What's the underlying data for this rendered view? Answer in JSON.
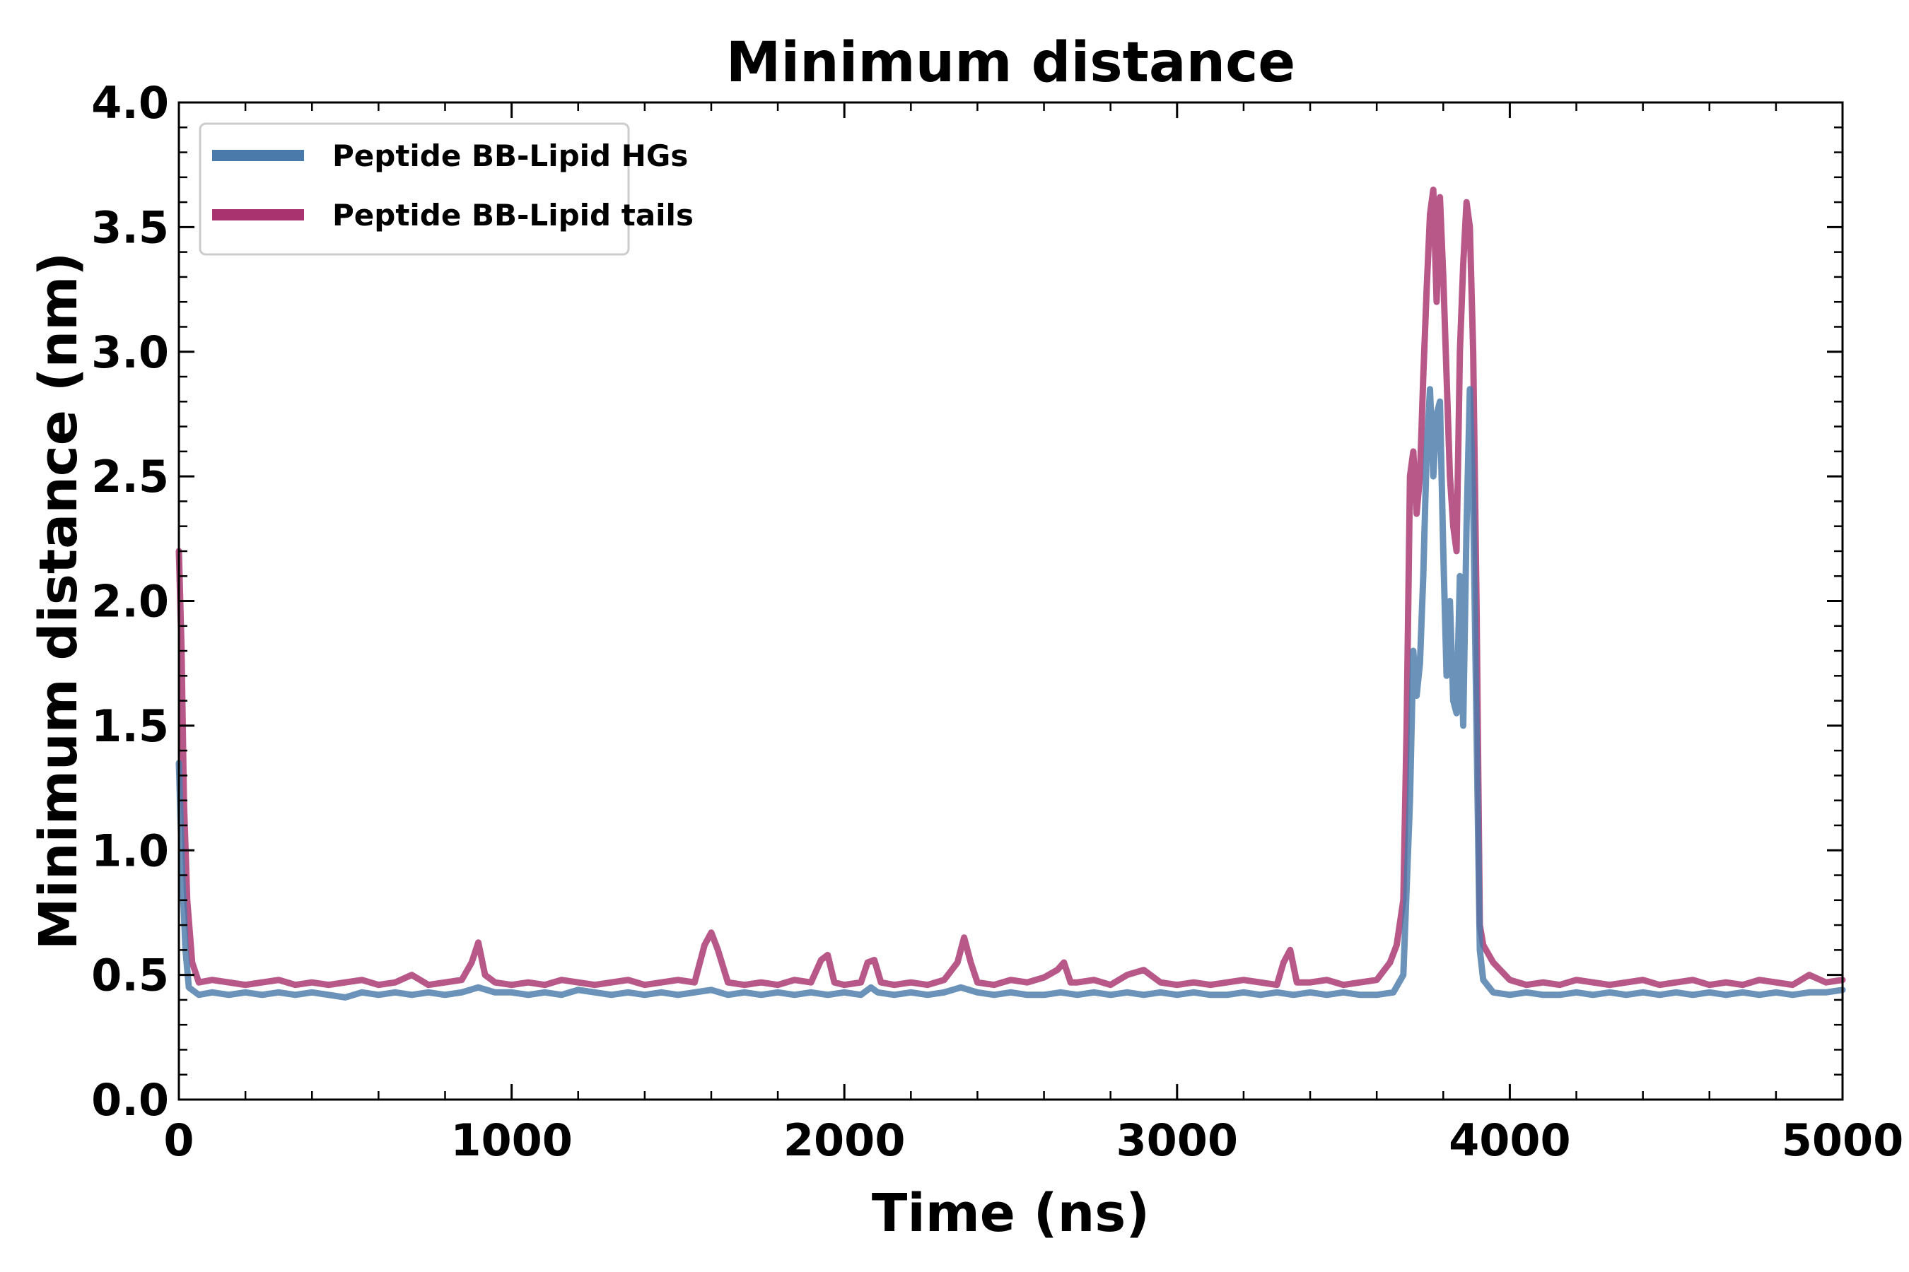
{
  "chart_data": {
    "type": "line",
    "title": "Minimum distance",
    "xlabel": "Time (ns)",
    "ylabel": "Minimum distance (nm)",
    "xlim": [
      0,
      5000
    ],
    "ylim": [
      0,
      4.0
    ],
    "xticks": [
      0,
      1000,
      2000,
      3000,
      4000,
      5000
    ],
    "xtick_labels": [
      "0",
      "1000",
      "2000",
      "3000",
      "4000",
      "5000"
    ],
    "yticks": [
      0,
      0.5,
      1.0,
      1.5,
      2.0,
      2.5,
      3.0,
      3.5,
      4.0
    ],
    "ytick_labels": [
      "0.0",
      "0.5",
      "1.0",
      "1.5",
      "2.0",
      "2.5",
      "3.0",
      "3.5",
      "4.0"
    ],
    "grid": false,
    "legend_position": "top-left",
    "series": [
      {
        "name": "Peptide BB-Lipid HGs",
        "color": "#4a7aaa",
        "x": [
          0,
          10,
          20,
          30,
          60,
          100,
          150,
          200,
          250,
          300,
          350,
          400,
          450,
          500,
          550,
          600,
          650,
          700,
          750,
          800,
          850,
          900,
          950,
          1000,
          1050,
          1100,
          1150,
          1200,
          1250,
          1300,
          1350,
          1400,
          1450,
          1500,
          1550,
          1600,
          1650,
          1700,
          1750,
          1800,
          1850,
          1900,
          1950,
          2000,
          2050,
          2080,
          2100,
          2150,
          2200,
          2250,
          2300,
          2350,
          2400,
          2450,
          2500,
          2550,
          2600,
          2650,
          2700,
          2750,
          2800,
          2850,
          2900,
          2950,
          3000,
          3050,
          3100,
          3150,
          3200,
          3250,
          3300,
          3350,
          3400,
          3450,
          3500,
          3550,
          3600,
          3650,
          3680,
          3700,
          3710,
          3720,
          3730,
          3740,
          3750,
          3760,
          3770,
          3780,
          3790,
          3800,
          3810,
          3820,
          3830,
          3840,
          3850,
          3860,
          3870,
          3880,
          3890,
          3900,
          3910,
          3920,
          3950,
          4000,
          4050,
          4100,
          4150,
          4200,
          4250,
          4300,
          4350,
          4400,
          4450,
          4500,
          4550,
          4600,
          4650,
          4700,
          4750,
          4800,
          4850,
          4900,
          4950,
          5000
        ],
        "y": [
          1.35,
          0.9,
          0.6,
          0.45,
          0.42,
          0.43,
          0.42,
          0.43,
          0.42,
          0.43,
          0.42,
          0.43,
          0.42,
          0.41,
          0.43,
          0.42,
          0.43,
          0.42,
          0.43,
          0.42,
          0.43,
          0.45,
          0.43,
          0.43,
          0.42,
          0.43,
          0.42,
          0.44,
          0.43,
          0.42,
          0.43,
          0.42,
          0.43,
          0.42,
          0.43,
          0.44,
          0.42,
          0.43,
          0.42,
          0.43,
          0.42,
          0.43,
          0.42,
          0.43,
          0.42,
          0.45,
          0.43,
          0.42,
          0.43,
          0.42,
          0.43,
          0.45,
          0.43,
          0.42,
          0.43,
          0.42,
          0.42,
          0.43,
          0.42,
          0.43,
          0.42,
          0.43,
          0.42,
          0.43,
          0.42,
          0.43,
          0.42,
          0.42,
          0.43,
          0.42,
          0.43,
          0.42,
          0.43,
          0.42,
          0.43,
          0.42,
          0.42,
          0.43,
          0.5,
          1.2,
          1.8,
          1.62,
          1.75,
          2.1,
          2.6,
          2.85,
          2.5,
          2.75,
          2.8,
          2.2,
          1.7,
          2.0,
          1.6,
          1.55,
          2.1,
          1.5,
          2.3,
          2.85,
          2.4,
          1.5,
          0.6,
          0.48,
          0.43,
          0.42,
          0.43,
          0.42,
          0.42,
          0.43,
          0.42,
          0.43,
          0.42,
          0.43,
          0.42,
          0.43,
          0.42,
          0.43,
          0.42,
          0.43,
          0.42,
          0.43,
          0.42,
          0.43,
          0.43,
          0.44
        ]
      },
      {
        "name": "Peptide BB-Lipid tails",
        "color": "#a8336f",
        "x": [
          0,
          8,
          15,
          25,
          40,
          60,
          100,
          150,
          200,
          250,
          300,
          350,
          400,
          450,
          500,
          550,
          600,
          650,
          700,
          750,
          800,
          850,
          880,
          900,
          920,
          950,
          1000,
          1050,
          1100,
          1150,
          1200,
          1250,
          1300,
          1350,
          1400,
          1450,
          1500,
          1550,
          1580,
          1600,
          1620,
          1650,
          1700,
          1750,
          1800,
          1850,
          1900,
          1930,
          1950,
          1970,
          2000,
          2050,
          2070,
          2090,
          2110,
          2150,
          2200,
          2250,
          2300,
          2340,
          2360,
          2380,
          2400,
          2450,
          2500,
          2550,
          2600,
          2640,
          2660,
          2680,
          2700,
          2750,
          2800,
          2850,
          2900,
          2950,
          3000,
          3050,
          3100,
          3150,
          3200,
          3250,
          3300,
          3320,
          3340,
          3360,
          3400,
          3450,
          3500,
          3550,
          3600,
          3640,
          3660,
          3680,
          3690,
          3700,
          3710,
          3720,
          3730,
          3740,
          3750,
          3760,
          3770,
          3780,
          3790,
          3800,
          3810,
          3820,
          3830,
          3840,
          3850,
          3860,
          3870,
          3880,
          3890,
          3900,
          3910,
          3920,
          3950,
          4000,
          4050,
          4100,
          4150,
          4200,
          4250,
          4300,
          4350,
          4400,
          4450,
          4500,
          4550,
          4600,
          4650,
          4700,
          4750,
          4800,
          4850,
          4900,
          4950,
          5000
        ],
        "y": [
          2.2,
          1.8,
          1.2,
          0.8,
          0.55,
          0.47,
          0.48,
          0.47,
          0.46,
          0.47,
          0.48,
          0.46,
          0.47,
          0.46,
          0.47,
          0.48,
          0.46,
          0.47,
          0.5,
          0.46,
          0.47,
          0.48,
          0.55,
          0.63,
          0.5,
          0.47,
          0.46,
          0.47,
          0.46,
          0.48,
          0.47,
          0.46,
          0.47,
          0.48,
          0.46,
          0.47,
          0.48,
          0.47,
          0.62,
          0.67,
          0.6,
          0.47,
          0.46,
          0.47,
          0.46,
          0.48,
          0.47,
          0.56,
          0.58,
          0.47,
          0.46,
          0.47,
          0.55,
          0.56,
          0.47,
          0.46,
          0.47,
          0.46,
          0.48,
          0.55,
          0.65,
          0.55,
          0.47,
          0.46,
          0.48,
          0.47,
          0.49,
          0.52,
          0.55,
          0.47,
          0.47,
          0.48,
          0.46,
          0.5,
          0.52,
          0.47,
          0.46,
          0.47,
          0.46,
          0.47,
          0.48,
          0.47,
          0.46,
          0.55,
          0.6,
          0.47,
          0.47,
          0.48,
          0.46,
          0.47,
          0.48,
          0.55,
          0.62,
          0.8,
          1.5,
          2.5,
          2.6,
          2.35,
          2.5,
          2.9,
          3.25,
          3.55,
          3.65,
          3.2,
          3.62,
          3.3,
          2.9,
          2.5,
          2.3,
          2.2,
          3.0,
          3.35,
          3.6,
          3.5,
          3.0,
          2.0,
          0.7,
          0.62,
          0.55,
          0.48,
          0.46,
          0.47,
          0.46,
          0.48,
          0.47,
          0.46,
          0.47,
          0.48,
          0.46,
          0.47,
          0.48,
          0.46,
          0.47,
          0.46,
          0.48,
          0.47,
          0.46,
          0.5,
          0.47,
          0.48
        ]
      }
    ]
  }
}
